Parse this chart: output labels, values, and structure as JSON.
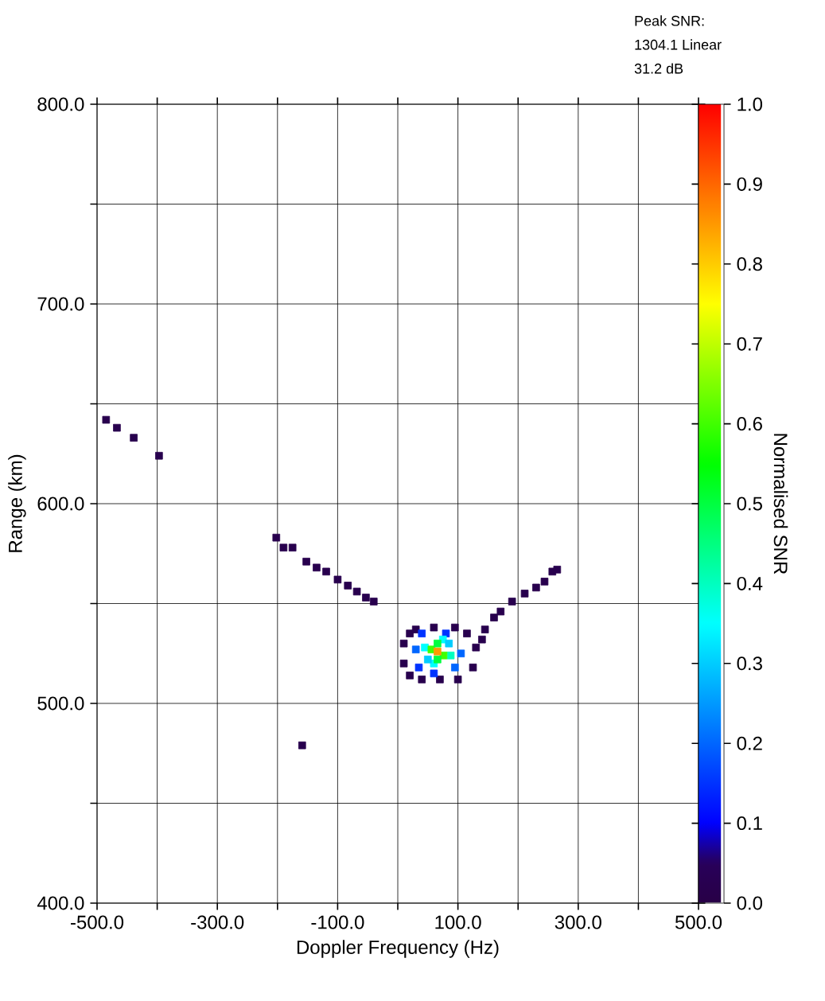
{
  "chart_data": {
    "type": "scatter",
    "xlabel": "Doppler Frequency (Hz)",
    "ylabel": "Range (km)",
    "clabel": "Normalised SNR",
    "annotations": [
      "Peak SNR:",
      "1304.1 Linear",
      "31.2 dB"
    ],
    "x": [
      -485,
      -467,
      -439,
      -397,
      -202,
      -190,
      -175,
      -152,
      -135,
      -119,
      -100,
      -83,
      -68,
      -53,
      -40,
      -159,
      145,
      160,
      171,
      190,
      211,
      230,
      244,
      257,
      265,
      10,
      10,
      20,
      20,
      40,
      70,
      100,
      125,
      130,
      115,
      95,
      60,
      30,
      140,
      30,
      105,
      40,
      95,
      60,
      80,
      35,
      45,
      88,
      60,
      75,
      50,
      85,
      56,
      76,
      66,
      66,
      66
    ],
    "values": [
      642,
      638,
      633,
      624,
      583,
      578,
      578,
      571,
      568,
      566,
      562,
      559,
      556,
      553,
      551,
      479,
      537,
      543,
      546,
      551,
      555,
      558,
      561,
      566,
      567,
      530,
      520,
      535,
      514,
      512,
      512,
      512,
      518,
      528,
      535,
      538,
      538,
      537,
      532,
      527,
      525,
      535,
      518,
      515,
      535,
      518,
      528,
      524,
      520,
      532,
      522,
      530,
      527,
      524,
      530,
      522,
      526
    ],
    "cvalues": [
      0.02,
      0.02,
      0.02,
      0.02,
      0.02,
      0.02,
      0.02,
      0.02,
      0.02,
      0.02,
      0.02,
      0.02,
      0.02,
      0.02,
      0.02,
      0.02,
      0.02,
      0.02,
      0.02,
      0.02,
      0.02,
      0.02,
      0.02,
      0.02,
      0.02,
      0.02,
      0.02,
      0.02,
      0.02,
      0.02,
      0.02,
      0.02,
      0.02,
      0.02,
      0.02,
      0.02,
      0.02,
      0.02,
      0.02,
      0.2,
      0.2,
      0.15,
      0.2,
      0.15,
      0.15,
      0.15,
      0.35,
      0.4,
      0.35,
      0.35,
      0.3,
      0.3,
      0.6,
      0.6,
      0.5,
      0.5,
      0.85
    ],
    "marker": "square",
    "grid": true,
    "xlim": [
      -500,
      500
    ],
    "xticks": [
      {
        "value": -500,
        "label": "-500.0"
      },
      {
        "value": -400,
        "label": null
      },
      {
        "value": -300,
        "label": "-300.0"
      },
      {
        "value": -200,
        "label": null
      },
      {
        "value": -100,
        "label": "-100.0"
      },
      {
        "value": 0,
        "label": null
      },
      {
        "value": 100,
        "label": "100.0"
      },
      {
        "value": 200,
        "label": null
      },
      {
        "value": 300,
        "label": "300.0"
      },
      {
        "value": 400,
        "label": null
      },
      {
        "value": 500,
        "label": "500.0"
      }
    ],
    "ylim": [
      400,
      800
    ],
    "yticks": [
      {
        "value": 400,
        "label": "400.0"
      },
      {
        "value": 450,
        "label": null
      },
      {
        "value": 500,
        "label": "500.0"
      },
      {
        "value": 550,
        "label": null
      },
      {
        "value": 600,
        "label": "600.0"
      },
      {
        "value": 650,
        "label": null
      },
      {
        "value": 700,
        "label": "700.0"
      },
      {
        "value": 750,
        "label": null
      },
      {
        "value": 800,
        "label": "800.0"
      }
    ],
    "clim": [
      0,
      1
    ],
    "cticks": [
      {
        "value": 0,
        "label": "0.0"
      },
      {
        "value": 0.1,
        "label": "0.1"
      },
      {
        "value": 0.2,
        "label": "0.2"
      },
      {
        "value": 0.3,
        "label": "0.3"
      },
      {
        "value": 0.4,
        "label": "0.4"
      },
      {
        "value": 0.5,
        "label": "0.5"
      },
      {
        "value": 0.6,
        "label": "0.6"
      },
      {
        "value": 0.7,
        "label": "0.7"
      },
      {
        "value": 0.8,
        "label": "0.8"
      },
      {
        "value": 0.9,
        "label": "0.9"
      },
      {
        "value": 1.0,
        "label": "1.0"
      }
    ]
  }
}
